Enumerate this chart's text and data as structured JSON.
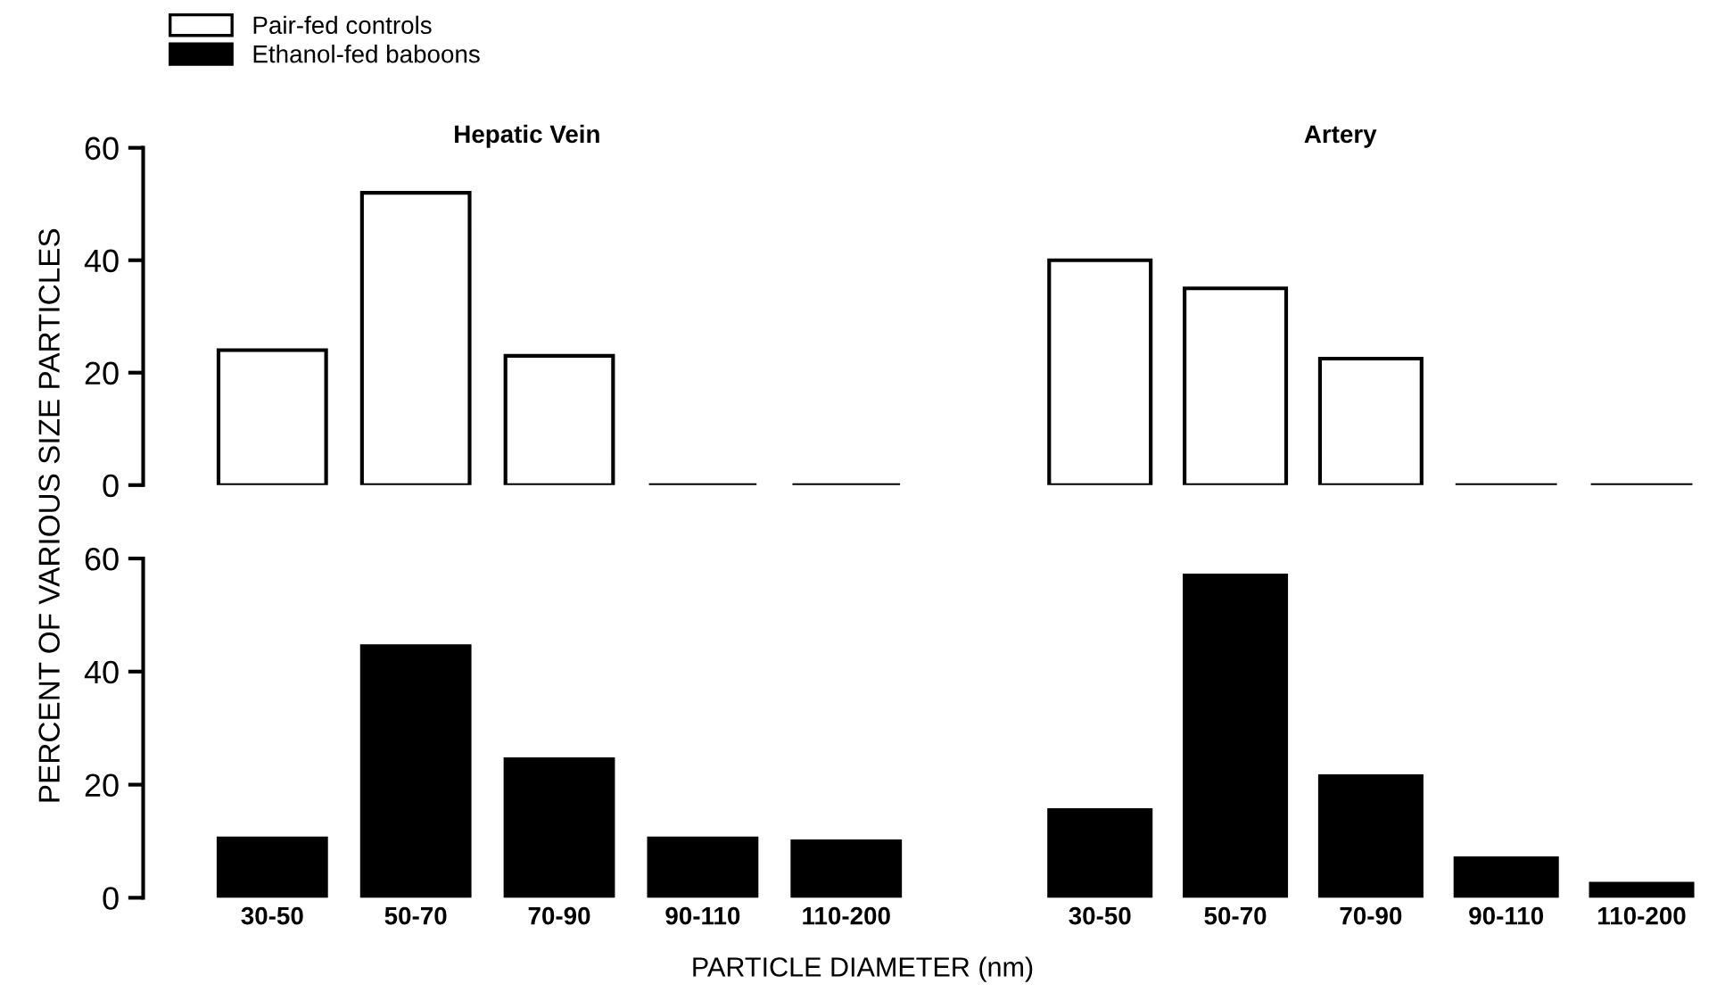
{
  "chart_data": [
    {
      "type": "bar",
      "title": "Hepatic Vein",
      "ylabel": "PERCENT OF VARIOUS SIZE PARTICLES",
      "categories": [
        "30-50",
        "50-70",
        "70-90",
        "90-110",
        "110-200"
      ],
      "series": [
        {
          "name": "Pair-fed controls",
          "color": "#ffffff",
          "values": [
            24,
            52,
            23,
            0,
            0
          ]
        }
      ],
      "ylim": [
        0,
        60
      ],
      "yticks": [
        0,
        20,
        40,
        60
      ],
      "tick_labels": "y",
      "legend": "top left"
    },
    {
      "type": "bar",
      "title": "Artery",
      "categories": [
        "30-50",
        "50-70",
        "70-90",
        "90-110",
        "110-200"
      ],
      "series": [
        {
          "color": "#ffffff",
          "values": [
            40,
            35,
            22.5,
            0,
            0
          ]
        }
      ],
      "ylim": [
        0,
        60
      ],
      "yticks": [
        0,
        20,
        40,
        60
      ],
      "tick_labels": false
    },
    {
      "type": "bar",
      "xlabel": "PARTICLE DIAMETER (nm)",
      "categories": [
        "30-50",
        "50-70",
        "70-90",
        "90-110",
        "110-200"
      ],
      "series": [
        {
          "name": "Ethanol-fed baboons",
          "color": "#000000",
          "values": [
            10.5,
            44.5,
            24.5,
            10.5,
            10
          ]
        }
      ],
      "ylim": [
        0,
        60
      ],
      "yticks": [
        0,
        20,
        40,
        60
      ],
      "legend": "top left"
    },
    {
      "type": "bar",
      "categories": [
        "30-50",
        "50-70",
        "70-90",
        "90-110",
        "110-200"
      ],
      "series": [
        {
          "color": "#000000",
          "values": [
            15.5,
            57,
            21.5,
            7,
            2.5
          ]
        }
      ],
      "ylim": [
        0,
        60
      ],
      "yticks": [
        0,
        20,
        40,
        60
      ],
      "tick_labels": "x"
    }
  ]
}
